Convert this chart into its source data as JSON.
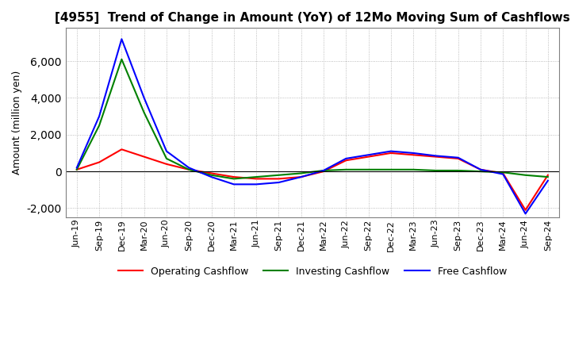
{
  "title": "[4955]  Trend of Change in Amount (YoY) of 12Mo Moving Sum of Cashflows",
  "ylabel": "Amount (million yen)",
  "x_labels": [
    "Jun-19",
    "Sep-19",
    "Dec-19",
    "Mar-20",
    "Jun-20",
    "Sep-20",
    "Dec-20",
    "Mar-21",
    "Jun-21",
    "Sep-21",
    "Dec-21",
    "Mar-22",
    "Jun-22",
    "Sep-22",
    "Dec-22",
    "Mar-23",
    "Jun-23",
    "Sep-23",
    "Dec-23",
    "Mar-24",
    "Jun-24",
    "Sep-24"
  ],
  "operating": [
    100,
    500,
    1200,
    800,
    400,
    100,
    -100,
    -300,
    -400,
    -400,
    -300,
    0,
    600,
    800,
    1000,
    900,
    800,
    700,
    100,
    -100,
    -2100,
    -200
  ],
  "investing": [
    100,
    2500,
    6100,
    3200,
    700,
    100,
    -200,
    -400,
    -300,
    -200,
    -100,
    50,
    100,
    100,
    100,
    100,
    50,
    50,
    0,
    -50,
    -200,
    -300
  ],
  "free": [
    200,
    3000,
    7200,
    4000,
    1100,
    200,
    -300,
    -700,
    -700,
    -600,
    -300,
    50,
    700,
    900,
    1100,
    1000,
    850,
    750,
    100,
    -150,
    -2300,
    -500
  ],
  "ylim": [
    -2500,
    7800
  ],
  "yticks": [
    -2000,
    0,
    2000,
    4000,
    6000
  ],
  "operating_color": "#ff0000",
  "investing_color": "#008000",
  "free_color": "#0000ff",
  "background_color": "#ffffff",
  "grid_color": "#aaaaaa"
}
